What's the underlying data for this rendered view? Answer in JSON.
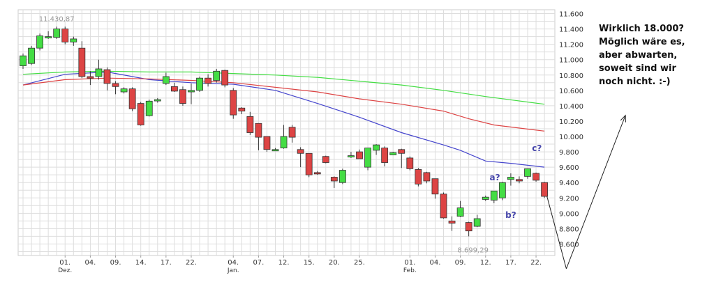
{
  "chart_data": {
    "type": "candlestick",
    "title": "",
    "ylim": [
      8450,
      11650
    ],
    "y_ticks": [
      8600,
      8800,
      9000,
      9200,
      9400,
      9600,
      9800,
      10000,
      10200,
      10400,
      10600,
      10800,
      11000,
      11200,
      11400,
      11600
    ],
    "y_tick_labels": [
      "8.600",
      "8.800",
      "9.000",
      "9.200",
      "9.400",
      "9.600",
      "9.800",
      "10.000",
      "10.200",
      "10.400",
      "10.600",
      "10.800",
      "11.000",
      "11.200",
      "11.400",
      "11.600"
    ],
    "x_ticks": [
      {
        "i": 5,
        "label": "01.",
        "sub": "Dez."
      },
      {
        "i": 8,
        "label": "04."
      },
      {
        "i": 11,
        "label": "09."
      },
      {
        "i": 14,
        "label": "14."
      },
      {
        "i": 17,
        "label": "17."
      },
      {
        "i": 20,
        "label": "22."
      },
      {
        "i": 25,
        "label": "04.",
        "sub": "Jan."
      },
      {
        "i": 28,
        "label": "07."
      },
      {
        "i": 31,
        "label": "12."
      },
      {
        "i": 34,
        "label": "15."
      },
      {
        "i": 37,
        "label": "20."
      },
      {
        "i": 40,
        "label": "25."
      },
      {
        "i": 46,
        "label": "01.",
        "sub": "Feb."
      },
      {
        "i": 49,
        "label": "04."
      },
      {
        "i": 52,
        "label": "09."
      },
      {
        "i": 55,
        "label": "12."
      },
      {
        "i": 58,
        "label": "17."
      },
      {
        "i": 61,
        "label": "22."
      }
    ],
    "candles": [
      {
        "o": 10920,
        "h": 11080,
        "l": 10880,
        "c": 11050
      },
      {
        "o": 10950,
        "h": 11180,
        "l": 10930,
        "c": 11150
      },
      {
        "o": 11150,
        "h": 11340,
        "l": 11120,
        "c": 11310
      },
      {
        "o": 11290,
        "h": 11370,
        "l": 11270,
        "c": 11300
      },
      {
        "o": 11290,
        "h": 11430,
        "l": 11270,
        "c": 11400
      },
      {
        "o": 11400,
        "h": 11430,
        "l": 11200,
        "c": 11230
      },
      {
        "o": 11230,
        "h": 11300,
        "l": 11180,
        "c": 11270
      },
      {
        "o": 11150,
        "h": 11240,
        "l": 10760,
        "c": 10780
      },
      {
        "o": 10780,
        "h": 10850,
        "l": 10670,
        "c": 10760
      },
      {
        "o": 10780,
        "h": 11000,
        "l": 10740,
        "c": 10880
      },
      {
        "o": 10870,
        "h": 10900,
        "l": 10600,
        "c": 10690
      },
      {
        "o": 10690,
        "h": 10720,
        "l": 10550,
        "c": 10650
      },
      {
        "o": 10580,
        "h": 10640,
        "l": 10560,
        "c": 10620
      },
      {
        "o": 10620,
        "h": 10640,
        "l": 10330,
        "c": 10360
      },
      {
        "o": 10430,
        "h": 10450,
        "l": 10140,
        "c": 10150
      },
      {
        "o": 10270,
        "h": 10480,
        "l": 10260,
        "c": 10460
      },
      {
        "o": 10480,
        "h": 10500,
        "l": 10440,
        "c": 10480
      },
      {
        "o": 10690,
        "h": 10830,
        "l": 10670,
        "c": 10780
      },
      {
        "o": 10650,
        "h": 10700,
        "l": 10580,
        "c": 10590
      },
      {
        "o": 10610,
        "h": 10650,
        "l": 10400,
        "c": 10430
      },
      {
        "o": 10580,
        "h": 10690,
        "l": 10420,
        "c": 10600
      },
      {
        "o": 10600,
        "h": 10780,
        "l": 10580,
        "c": 10760
      },
      {
        "o": 10760,
        "h": 10810,
        "l": 10650,
        "c": 10690
      },
      {
        "o": 10730,
        "h": 10880,
        "l": 10700,
        "c": 10850
      },
      {
        "o": 10860,
        "h": 10870,
        "l": 10640,
        "c": 10670
      },
      {
        "o": 10600,
        "h": 10630,
        "l": 10230,
        "c": 10280
      },
      {
        "o": 10370,
        "h": 10380,
        "l": 10290,
        "c": 10330
      },
      {
        "o": 10260,
        "h": 10320,
        "l": 10020,
        "c": 10050
      },
      {
        "o": 10170,
        "h": 10170,
        "l": 9820,
        "c": 9990
      },
      {
        "o": 10000,
        "h": 10000,
        "l": 9800,
        "c": 9830
      },
      {
        "o": 9820,
        "h": 9850,
        "l": 9820,
        "c": 9830
      },
      {
        "o": 9850,
        "h": 10150,
        "l": 9840,
        "c": 10000
      },
      {
        "o": 10120,
        "h": 10150,
        "l": 9920,
        "c": 9990
      },
      {
        "o": 9830,
        "h": 9860,
        "l": 9600,
        "c": 9780
      },
      {
        "o": 9780,
        "h": 9780,
        "l": 9470,
        "c": 9500
      },
      {
        "o": 9530,
        "h": 9550,
        "l": 9500,
        "c": 9520
      },
      {
        "o": 9740,
        "h": 9750,
        "l": 9650,
        "c": 9660
      },
      {
        "o": 9470,
        "h": 9480,
        "l": 9330,
        "c": 9420
      },
      {
        "o": 9400,
        "h": 9580,
        "l": 9380,
        "c": 9560
      },
      {
        "o": 9750,
        "h": 9800,
        "l": 9720,
        "c": 9750
      },
      {
        "o": 9800,
        "h": 9830,
        "l": 9720,
        "c": 9710
      },
      {
        "o": 9600,
        "h": 9820,
        "l": 9560,
        "c": 9850
      },
      {
        "o": 9820,
        "h": 9900,
        "l": 9760,
        "c": 9890
      },
      {
        "o": 9850,
        "h": 9870,
        "l": 9610,
        "c": 9660
      },
      {
        "o": 9760,
        "h": 9800,
        "l": 9760,
        "c": 9790
      },
      {
        "o": 9830,
        "h": 9840,
        "l": 9590,
        "c": 9780
      },
      {
        "o": 9720,
        "h": 9740,
        "l": 9560,
        "c": 9580
      },
      {
        "o": 9570,
        "h": 9590,
        "l": 9350,
        "c": 9380
      },
      {
        "o": 9530,
        "h": 9540,
        "l": 9390,
        "c": 9420
      },
      {
        "o": 9450,
        "h": 9450,
        "l": 9190,
        "c": 9250
      },
      {
        "o": 9250,
        "h": 9270,
        "l": 8930,
        "c": 8940
      },
      {
        "o": 8900,
        "h": 8960,
        "l": 8770,
        "c": 8870
      },
      {
        "o": 8960,
        "h": 9160,
        "l": 8950,
        "c": 9070
      },
      {
        "o": 8880,
        "h": 8890,
        "l": 8700,
        "c": 8770
      },
      {
        "o": 8830,
        "h": 8980,
        "l": 8820,
        "c": 8930
      },
      {
        "o": 9180,
        "h": 9230,
        "l": 9160,
        "c": 9210
      },
      {
        "o": 9170,
        "h": 9270,
        "l": 9130,
        "c": 9290
      },
      {
        "o": 9200,
        "h": 9410,
        "l": 9170,
        "c": 9400
      },
      {
        "o": 9440,
        "h": 9520,
        "l": 9360,
        "c": 9470
      },
      {
        "o": 9440,
        "h": 9480,
        "l": 9390,
        "c": 9420
      },
      {
        "o": 9480,
        "h": 9550,
        "l": 9450,
        "c": 9580
      },
      {
        "o": 9520,
        "h": 9530,
        "l": 9410,
        "c": 9430
      },
      {
        "o": 9400,
        "h": 9410,
        "l": 9200,
        "c": 9220
      }
    ],
    "series": [
      {
        "color": "#4444cc",
        "points": [
          [
            0,
            10670
          ],
          [
            5,
            10810
          ],
          [
            10,
            10840
          ],
          [
            15,
            10740
          ],
          [
            20,
            10700
          ],
          [
            25,
            10680
          ],
          [
            30,
            10600
          ],
          [
            35,
            10430
          ],
          [
            40,
            10250
          ],
          [
            45,
            10050
          ],
          [
            50,
            9890
          ],
          [
            52,
            9820
          ],
          [
            55,
            9680
          ],
          [
            58,
            9650
          ],
          [
            62,
            9600
          ]
        ]
      },
      {
        "color": "#dd4444",
        "points": [
          [
            0,
            10670
          ],
          [
            5,
            10740
          ],
          [
            10,
            10760
          ],
          [
            15,
            10750
          ],
          [
            20,
            10730
          ],
          [
            25,
            10700
          ],
          [
            30,
            10640
          ],
          [
            35,
            10580
          ],
          [
            40,
            10490
          ],
          [
            45,
            10420
          ],
          [
            50,
            10330
          ],
          [
            53,
            10230
          ],
          [
            56,
            10150
          ],
          [
            62,
            10070
          ]
        ]
      },
      {
        "color": "#44dd44",
        "points": [
          [
            0,
            10810
          ],
          [
            5,
            10840
          ],
          [
            10,
            10850
          ],
          [
            15,
            10840
          ],
          [
            20,
            10840
          ],
          [
            25,
            10820
          ],
          [
            30,
            10800
          ],
          [
            35,
            10770
          ],
          [
            40,
            10720
          ],
          [
            45,
            10670
          ],
          [
            50,
            10600
          ],
          [
            55,
            10520
          ],
          [
            62,
            10420
          ]
        ]
      }
    ],
    "annotations": {
      "high_label": "11.430,87",
      "low_label": "8.699,29",
      "a": "a?",
      "b": "b?",
      "c": "c?"
    },
    "annotation_arrow": {
      "from": [
        62.3,
        9220
      ],
      "down_to": [
        64.6,
        8640
      ],
      "up_to": [
        70.8,
        10230
      ]
    },
    "colors": {
      "up": "#44dd44",
      "down": "#dd4444",
      "wick": "#333333",
      "grid": "#dddddd",
      "annotation": "#4444aa"
    }
  },
  "note": {
    "lines": [
      "Wirklich 18.000?",
      "Möglich wäre es,",
      "aber abwarten,",
      "soweit sind wir",
      "noch nicht. :-)"
    ]
  }
}
